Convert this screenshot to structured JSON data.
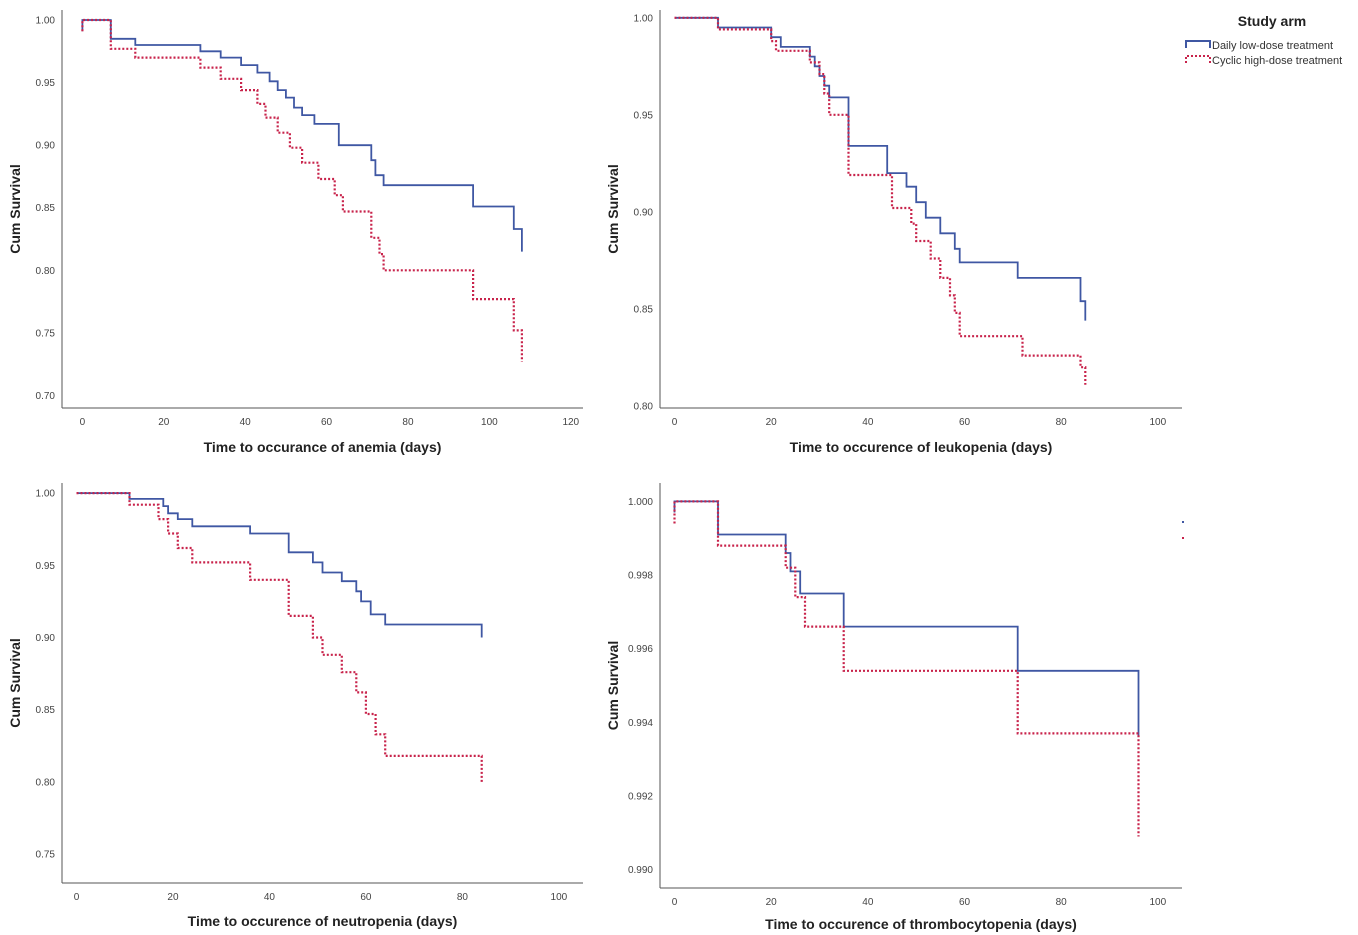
{
  "legend": {
    "title": "Study arm",
    "entries": [
      {
        "label": "Daily low-dose treatment",
        "color": "#3f57a3",
        "style": "solid"
      },
      {
        "label": "Cyclic high-dose treatment",
        "color": "#c8234b",
        "style": "dotted"
      }
    ]
  },
  "chart_data": [
    {
      "type": "line",
      "title": "",
      "xlabel": "Time to occurance of anemia (days)",
      "ylabel": "Cum Survival",
      "xlim": [
        -5,
        123
      ],
      "ylim": [
        0.69,
        1.008
      ],
      "xticks": [
        0,
        20,
        40,
        60,
        80,
        100,
        120
      ],
      "xtick_labels": [
        "0",
        "20",
        "40",
        "60",
        "80",
        "100",
        "120"
      ],
      "yticks": [
        0.7,
        0.75,
        0.8,
        0.85,
        0.9,
        0.95,
        1.0
      ],
      "ytick_labels": [
        "0.70",
        "0.75",
        "0.80",
        "0.85",
        "0.90",
        "0.95",
        "1.00"
      ],
      "series": [
        {
          "name": "Daily low-dose treatment",
          "x": [
            0,
            0,
            7,
            7,
            13,
            13,
            29,
            29,
            34,
            34,
            39,
            39,
            43,
            43,
            46,
            46,
            48,
            48,
            50,
            50,
            52,
            52,
            54,
            54,
            57,
            57,
            63,
            63,
            71,
            71,
            72,
            72,
            74,
            74,
            96,
            96,
            106,
            106,
            108,
            108
          ],
          "y": [
            0.991,
            1.0,
            1.0,
            0.985,
            0.985,
            0.98,
            0.98,
            0.975,
            0.975,
            0.97,
            0.97,
            0.964,
            0.964,
            0.958,
            0.958,
            0.951,
            0.951,
            0.944,
            0.944,
            0.938,
            0.938,
            0.93,
            0.93,
            0.924,
            0.924,
            0.917,
            0.917,
            0.9,
            0.9,
            0.888,
            0.888,
            0.876,
            0.876,
            0.868,
            0.868,
            0.851,
            0.851,
            0.833,
            0.833,
            0.815
          ]
        },
        {
          "name": "Cyclic high-dose treatment",
          "x": [
            0,
            0,
            7,
            7,
            13,
            13,
            29,
            29,
            34,
            34,
            39,
            39,
            43,
            43,
            45,
            45,
            48,
            48,
            51,
            51,
            54,
            54,
            58,
            58,
            62,
            62,
            64,
            64,
            71,
            71,
            73,
            73,
            74,
            74,
            96,
            96,
            106,
            106,
            108,
            108
          ],
          "y": [
            0.991,
            1.0,
            1.0,
            0.977,
            0.977,
            0.97,
            0.97,
            0.962,
            0.962,
            0.953,
            0.953,
            0.944,
            0.944,
            0.933,
            0.933,
            0.922,
            0.922,
            0.91,
            0.91,
            0.898,
            0.898,
            0.886,
            0.886,
            0.873,
            0.873,
            0.86,
            0.86,
            0.847,
            0.847,
            0.826,
            0.826,
            0.813,
            0.813,
            0.8,
            0.8,
            0.777,
            0.777,
            0.752,
            0.752,
            0.727
          ]
        }
      ]
    },
    {
      "type": "line",
      "title": "",
      "xlabel": "Time to occurence of leukopenia (days)",
      "ylabel": "Cum Survival",
      "xlim": [
        -3,
        105
      ],
      "ylim": [
        0.799,
        1.004
      ],
      "xticks": [
        0,
        20,
        40,
        60,
        80,
        100
      ],
      "xtick_labels": [
        "0",
        "20",
        "40",
        "60",
        "80",
        "100"
      ],
      "yticks": [
        0.8,
        0.85,
        0.9,
        0.95,
        1.0
      ],
      "ytick_labels": [
        "0.80",
        "0.85",
        "0.90",
        "0.95",
        "1.00"
      ],
      "series": [
        {
          "name": "Daily low-dose treatment",
          "x": [
            0,
            9,
            9,
            20,
            20,
            22,
            22,
            28,
            28,
            29,
            29,
            30,
            30,
            31,
            31,
            32,
            32,
            36,
            36,
            44,
            44,
            48,
            48,
            50,
            50,
            52,
            52,
            55,
            55,
            58,
            58,
            59,
            59,
            71,
            71,
            84,
            84,
            85,
            85
          ],
          "y": [
            1.0,
            1.0,
            0.995,
            0.995,
            0.99,
            0.99,
            0.985,
            0.985,
            0.98,
            0.98,
            0.975,
            0.975,
            0.97,
            0.97,
            0.965,
            0.965,
            0.959,
            0.959,
            0.934,
            0.934,
            0.92,
            0.92,
            0.913,
            0.913,
            0.905,
            0.905,
            0.897,
            0.897,
            0.889,
            0.889,
            0.881,
            0.881,
            0.874,
            0.874,
            0.866,
            0.866,
            0.854,
            0.854,
            0.844
          ]
        },
        {
          "name": "Cyclic high-dose treatment",
          "x": [
            0,
            9,
            9,
            20,
            20,
            21,
            21,
            28,
            28,
            30,
            30,
            31,
            31,
            32,
            32,
            36,
            36,
            45,
            45,
            49,
            49,
            50,
            50,
            53,
            53,
            55,
            55,
            57,
            57,
            58,
            58,
            59,
            59,
            72,
            72,
            84,
            84,
            85,
            85
          ],
          "y": [
            1.0,
            1.0,
            0.994,
            0.994,
            0.988,
            0.988,
            0.983,
            0.983,
            0.977,
            0.977,
            0.971,
            0.971,
            0.961,
            0.961,
            0.95,
            0.95,
            0.919,
            0.919,
            0.902,
            0.902,
            0.894,
            0.894,
            0.885,
            0.885,
            0.876,
            0.876,
            0.866,
            0.866,
            0.857,
            0.857,
            0.848,
            0.848,
            0.836,
            0.836,
            0.826,
            0.826,
            0.82,
            0.82,
            0.811
          ]
        }
      ]
    },
    {
      "type": "line",
      "title": "",
      "xlabel": "Time to occurence of neutropenia (days)",
      "ylabel": "Cum Survival",
      "xlim": [
        -3,
        105
      ],
      "ylim": [
        0.73,
        1.007
      ],
      "xticks": [
        0,
        20,
        40,
        60,
        80,
        100
      ],
      "xtick_labels": [
        "0",
        "20",
        "40",
        "60",
        "80",
        "100"
      ],
      "yticks": [
        0.75,
        0.8,
        0.85,
        0.9,
        0.95,
        1.0
      ],
      "ytick_labels": [
        "0.75",
        "0.80",
        "0.85",
        "0.90",
        "0.95",
        "1.00"
      ],
      "series": [
        {
          "name": "Daily low-dose treatment",
          "x": [
            0,
            11,
            11,
            18,
            18,
            19,
            19,
            21,
            21,
            24,
            24,
            36,
            36,
            44,
            44,
            49,
            49,
            51,
            51,
            55,
            55,
            58,
            58,
            59,
            59,
            61,
            61,
            64,
            64,
            84,
            84
          ],
          "y": [
            1.0,
            1.0,
            0.996,
            0.996,
            0.991,
            0.991,
            0.986,
            0.986,
            0.982,
            0.982,
            0.977,
            0.977,
            0.972,
            0.972,
            0.959,
            0.959,
            0.952,
            0.952,
            0.945,
            0.945,
            0.939,
            0.939,
            0.932,
            0.932,
            0.925,
            0.925,
            0.916,
            0.916,
            0.909,
            0.909,
            0.9
          ]
        },
        {
          "name": "Cyclic high-dose treatment",
          "x": [
            0,
            11,
            11,
            17,
            17,
            19,
            19,
            21,
            21,
            24,
            24,
            36,
            36,
            44,
            44,
            49,
            49,
            51,
            51,
            55,
            55,
            58,
            58,
            60,
            60,
            62,
            62,
            64,
            64,
            84,
            84
          ],
          "y": [
            1.0,
            1.0,
            0.992,
            0.992,
            0.982,
            0.982,
            0.972,
            0.972,
            0.962,
            0.962,
            0.952,
            0.952,
            0.94,
            0.94,
            0.915,
            0.915,
            0.9,
            0.9,
            0.888,
            0.888,
            0.876,
            0.876,
            0.862,
            0.862,
            0.847,
            0.847,
            0.833,
            0.833,
            0.818,
            0.818,
            0.8
          ]
        }
      ]
    },
    {
      "type": "line",
      "title": "",
      "xlabel": "Time to occurence of thrombocytopenia (days)",
      "ylabel": "Cum Survival",
      "xlim": [
        -3,
        105
      ],
      "ylim": [
        0.9895,
        1.0005
      ],
      "xticks": [
        0,
        20,
        40,
        60,
        80,
        100
      ],
      "xtick_labels": [
        "0",
        "20",
        "40",
        "60",
        "80",
        "100"
      ],
      "yticks": [
        0.99,
        0.992,
        0.994,
        0.996,
        0.998,
        1.0
      ],
      "ytick_labels": [
        "0.990",
        "0.992",
        "0.994",
        "0.996",
        "0.998",
        "1.000"
      ],
      "series": [
        {
          "name": "Daily low-dose treatment",
          "x": [
            0,
            0,
            9,
            9,
            23,
            23,
            24,
            24,
            26,
            26,
            35,
            35,
            71,
            71,
            96,
            96
          ],
          "y": [
            0.9997,
            1.0,
            1.0,
            0.9991,
            0.9991,
            0.9986,
            0.9986,
            0.9981,
            0.9981,
            0.9975,
            0.9975,
            0.9966,
            0.9966,
            0.9954,
            0.9954,
            0.9936
          ]
        },
        {
          "name": "Cyclic high-dose treatment",
          "x": [
            0,
            0,
            9,
            9,
            23,
            23,
            25,
            25,
            27,
            27,
            35,
            35,
            71,
            71,
            96,
            96
          ],
          "y": [
            0.9994,
            1.0,
            1.0,
            0.9988,
            0.9988,
            0.9982,
            0.9982,
            0.9974,
            0.9974,
            0.9966,
            0.9966,
            0.9954,
            0.9954,
            0.9937,
            0.9937,
            0.9909
          ]
        }
      ]
    }
  ]
}
